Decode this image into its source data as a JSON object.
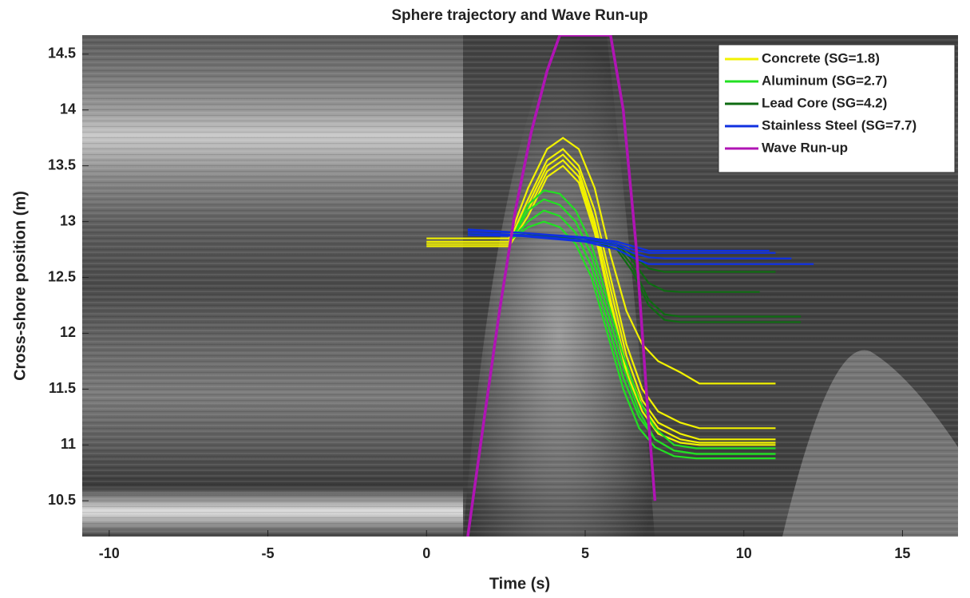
{
  "chart_data": {
    "type": "line",
    "title": "Sphere trajectory and Wave Run-up",
    "xlabel": "Time (s)",
    "ylabel": "Cross-shore position (m)",
    "xlim": [
      -10.85,
      16.75
    ],
    "ylim": [
      10.18,
      14.67
    ],
    "xticks": [
      -10,
      -5,
      0,
      5,
      10,
      15
    ],
    "yticks": [
      10.5,
      11,
      11.5,
      12,
      12.5,
      13,
      13.5,
      14,
      14.5
    ],
    "legend": "upper right",
    "series": [
      {
        "name": "Concrete (SG=1.8)",
        "color": "#f2f200",
        "lines": [
          {
            "x": [
              0,
              2.6,
              3.2,
              3.8,
              4.3,
              4.8,
              5.3,
              5.8,
              6.3,
              6.8,
              7.3,
              8,
              8.6,
              11
            ],
            "y": [
              12.85,
              12.85,
              13.3,
              13.65,
              13.75,
              13.65,
              13.3,
              12.7,
              12.2,
              11.9,
              11.75,
              11.65,
              11.55,
              11.55
            ]
          },
          {
            "x": [
              0,
              2.6,
              3.2,
              3.8,
              4.3,
              4.8,
              5.3,
              5.8,
              6.3,
              6.8,
              7.3,
              8,
              8.6,
              11
            ],
            "y": [
              12.82,
              12.82,
              13.2,
              13.55,
              13.65,
              13.5,
              13.1,
              12.5,
              11.9,
              11.5,
              11.3,
              11.2,
              11.15,
              11.15
            ]
          },
          {
            "x": [
              0,
              2.6,
              3.2,
              3.8,
              4.3,
              4.8,
              5.3,
              5.8,
              6.3,
              6.8,
              7.3,
              8,
              8.6,
              11
            ],
            "y": [
              12.8,
              12.8,
              13.15,
              13.5,
              13.6,
              13.45,
              13.0,
              12.4,
              11.8,
              11.4,
              11.2,
              11.1,
              11.05,
              11.05
            ]
          },
          {
            "x": [
              0,
              2.6,
              3.2,
              3.8,
              4.3,
              4.8,
              5.3,
              5.8,
              6.3,
              6.8,
              7.3,
              8,
              8.6,
              11
            ],
            "y": [
              12.8,
              12.8,
              13.1,
              13.45,
              13.55,
              13.4,
              12.95,
              12.3,
              11.7,
              11.35,
              11.15,
              11.05,
              11.02,
              11.02
            ]
          },
          {
            "x": [
              0,
              2.6,
              3.2,
              3.8,
              4.3,
              4.8,
              5.3,
              5.8,
              6.3,
              6.8,
              7.3,
              8,
              8.6,
              11
            ],
            "y": [
              12.78,
              12.78,
              13.05,
              13.4,
              13.5,
              13.35,
              12.9,
              12.25,
              11.65,
              11.3,
              11.1,
              11.02,
              11.0,
              11.0
            ]
          }
        ]
      },
      {
        "name": "Aluminum (SG=2.7)",
        "color": "#22e022",
        "lines": [
          {
            "x": [
              2.7,
              3.2,
              3.7,
              4.2,
              4.7,
              5.2,
              5.7,
              6.2,
              6.7,
              7.2,
              7.8,
              8.5,
              11
            ],
            "y": [
              12.85,
              13.15,
              13.28,
              13.25,
              13.1,
              12.8,
              12.3,
              11.8,
              11.4,
              11.15,
              11.0,
              10.97,
              10.97
            ]
          },
          {
            "x": [
              2.7,
              3.2,
              3.7,
              4.2,
              4.7,
              5.2,
              5.7,
              6.2,
              6.7,
              7.2,
              7.8,
              8.5,
              11
            ],
            "y": [
              12.85,
              13.1,
              13.2,
              13.15,
              13.0,
              12.7,
              12.2,
              11.7,
              11.3,
              11.05,
              10.95,
              10.92,
              10.92
            ]
          },
          {
            "x": [
              2.7,
              3.2,
              3.7,
              4.2,
              4.7,
              5.2,
              5.7,
              6.2,
              6.7,
              7.2,
              7.8,
              8.5,
              11
            ],
            "y": [
              12.85,
              13.0,
              13.1,
              13.05,
              12.9,
              12.6,
              12.1,
              11.6,
              11.25,
              11.05,
              10.95,
              10.92,
              10.92
            ]
          },
          {
            "x": [
              2.7,
              3.2,
              3.7,
              4.2,
              4.7,
              5.2,
              5.7,
              6.2,
              6.7,
              7.2,
              7.8,
              8.5,
              11
            ],
            "y": [
              12.85,
              12.95,
              13.0,
              12.95,
              12.8,
              12.5,
              12.0,
              11.5,
              11.15,
              10.98,
              10.9,
              10.88,
              10.88
            ]
          }
        ]
      },
      {
        "name": "Lead Core (SG=4.2)",
        "color": "#0e6b12",
        "lines": [
          {
            "x": [
              1.3,
              3,
              5,
              6,
              6.5,
              7,
              7.5,
              8,
              11
            ],
            "y": [
              12.88,
              12.88,
              12.85,
              12.8,
              12.7,
              12.58,
              12.55,
              12.55,
              12.55
            ]
          },
          {
            "x": [
              1.3,
              3,
              5,
              6,
              6.5,
              7,
              7.5,
              8,
              10.5
            ],
            "y": [
              12.88,
              12.88,
              12.85,
              12.8,
              12.65,
              12.45,
              12.38,
              12.37,
              12.37
            ]
          },
          {
            "x": [
              1.3,
              3,
              5,
              6,
              6.5,
              7,
              7.5,
              8,
              11.8
            ],
            "y": [
              12.88,
              12.88,
              12.85,
              12.78,
              12.6,
              12.3,
              12.17,
              12.15,
              12.15
            ]
          },
          {
            "x": [
              1.3,
              3,
              5,
              6,
              6.5,
              7,
              7.5,
              8,
              11.8
            ],
            "y": [
              12.88,
              12.88,
              12.85,
              12.75,
              12.55,
              12.25,
              12.12,
              12.1,
              12.1
            ]
          }
        ]
      },
      {
        "name": "Stainless Steel (SG=7.7)",
        "color": "#1030e0",
        "lines": [
          {
            "x": [
              1.3,
              3,
              5,
              6,
              6.5,
              7,
              7.5,
              11
            ],
            "y": [
              12.92,
              12.9,
              12.85,
              12.8,
              12.75,
              12.72,
              12.72,
              12.72
            ]
          },
          {
            "x": [
              1.3,
              3,
              5,
              6,
              6.5,
              7,
              7.5,
              11.5
            ],
            "y": [
              12.9,
              12.88,
              12.83,
              12.78,
              12.72,
              12.68,
              12.67,
              12.67
            ]
          },
          {
            "x": [
              1.3,
              3,
              5,
              6,
              6.5,
              7,
              7.5,
              12.2
            ],
            "y": [
              12.88,
              12.87,
              12.82,
              12.75,
              12.68,
              12.62,
              12.62,
              12.62
            ]
          },
          {
            "x": [
              1.3,
              3,
              5,
              6,
              6.5,
              7,
              7.5,
              10.8
            ],
            "y": [
              12.93,
              12.9,
              12.86,
              12.82,
              12.78,
              12.74,
              12.74,
              12.74
            ]
          }
        ]
      },
      {
        "name": "Wave Run-up",
        "color": "#b014b4",
        "lines": [
          {
            "x": [
              1.3,
              1.8,
              2.3,
              2.8,
              3.3,
              3.8,
              4.2,
              5.8,
              6.2,
              6.6,
              7,
              7.2
            ],
            "y": [
              10.18,
              11.2,
              12.2,
              13.1,
              13.8,
              14.35,
              14.67,
              14.67,
              14.0,
              12.8,
              11.2,
              10.5
            ]
          }
        ]
      }
    ]
  }
}
